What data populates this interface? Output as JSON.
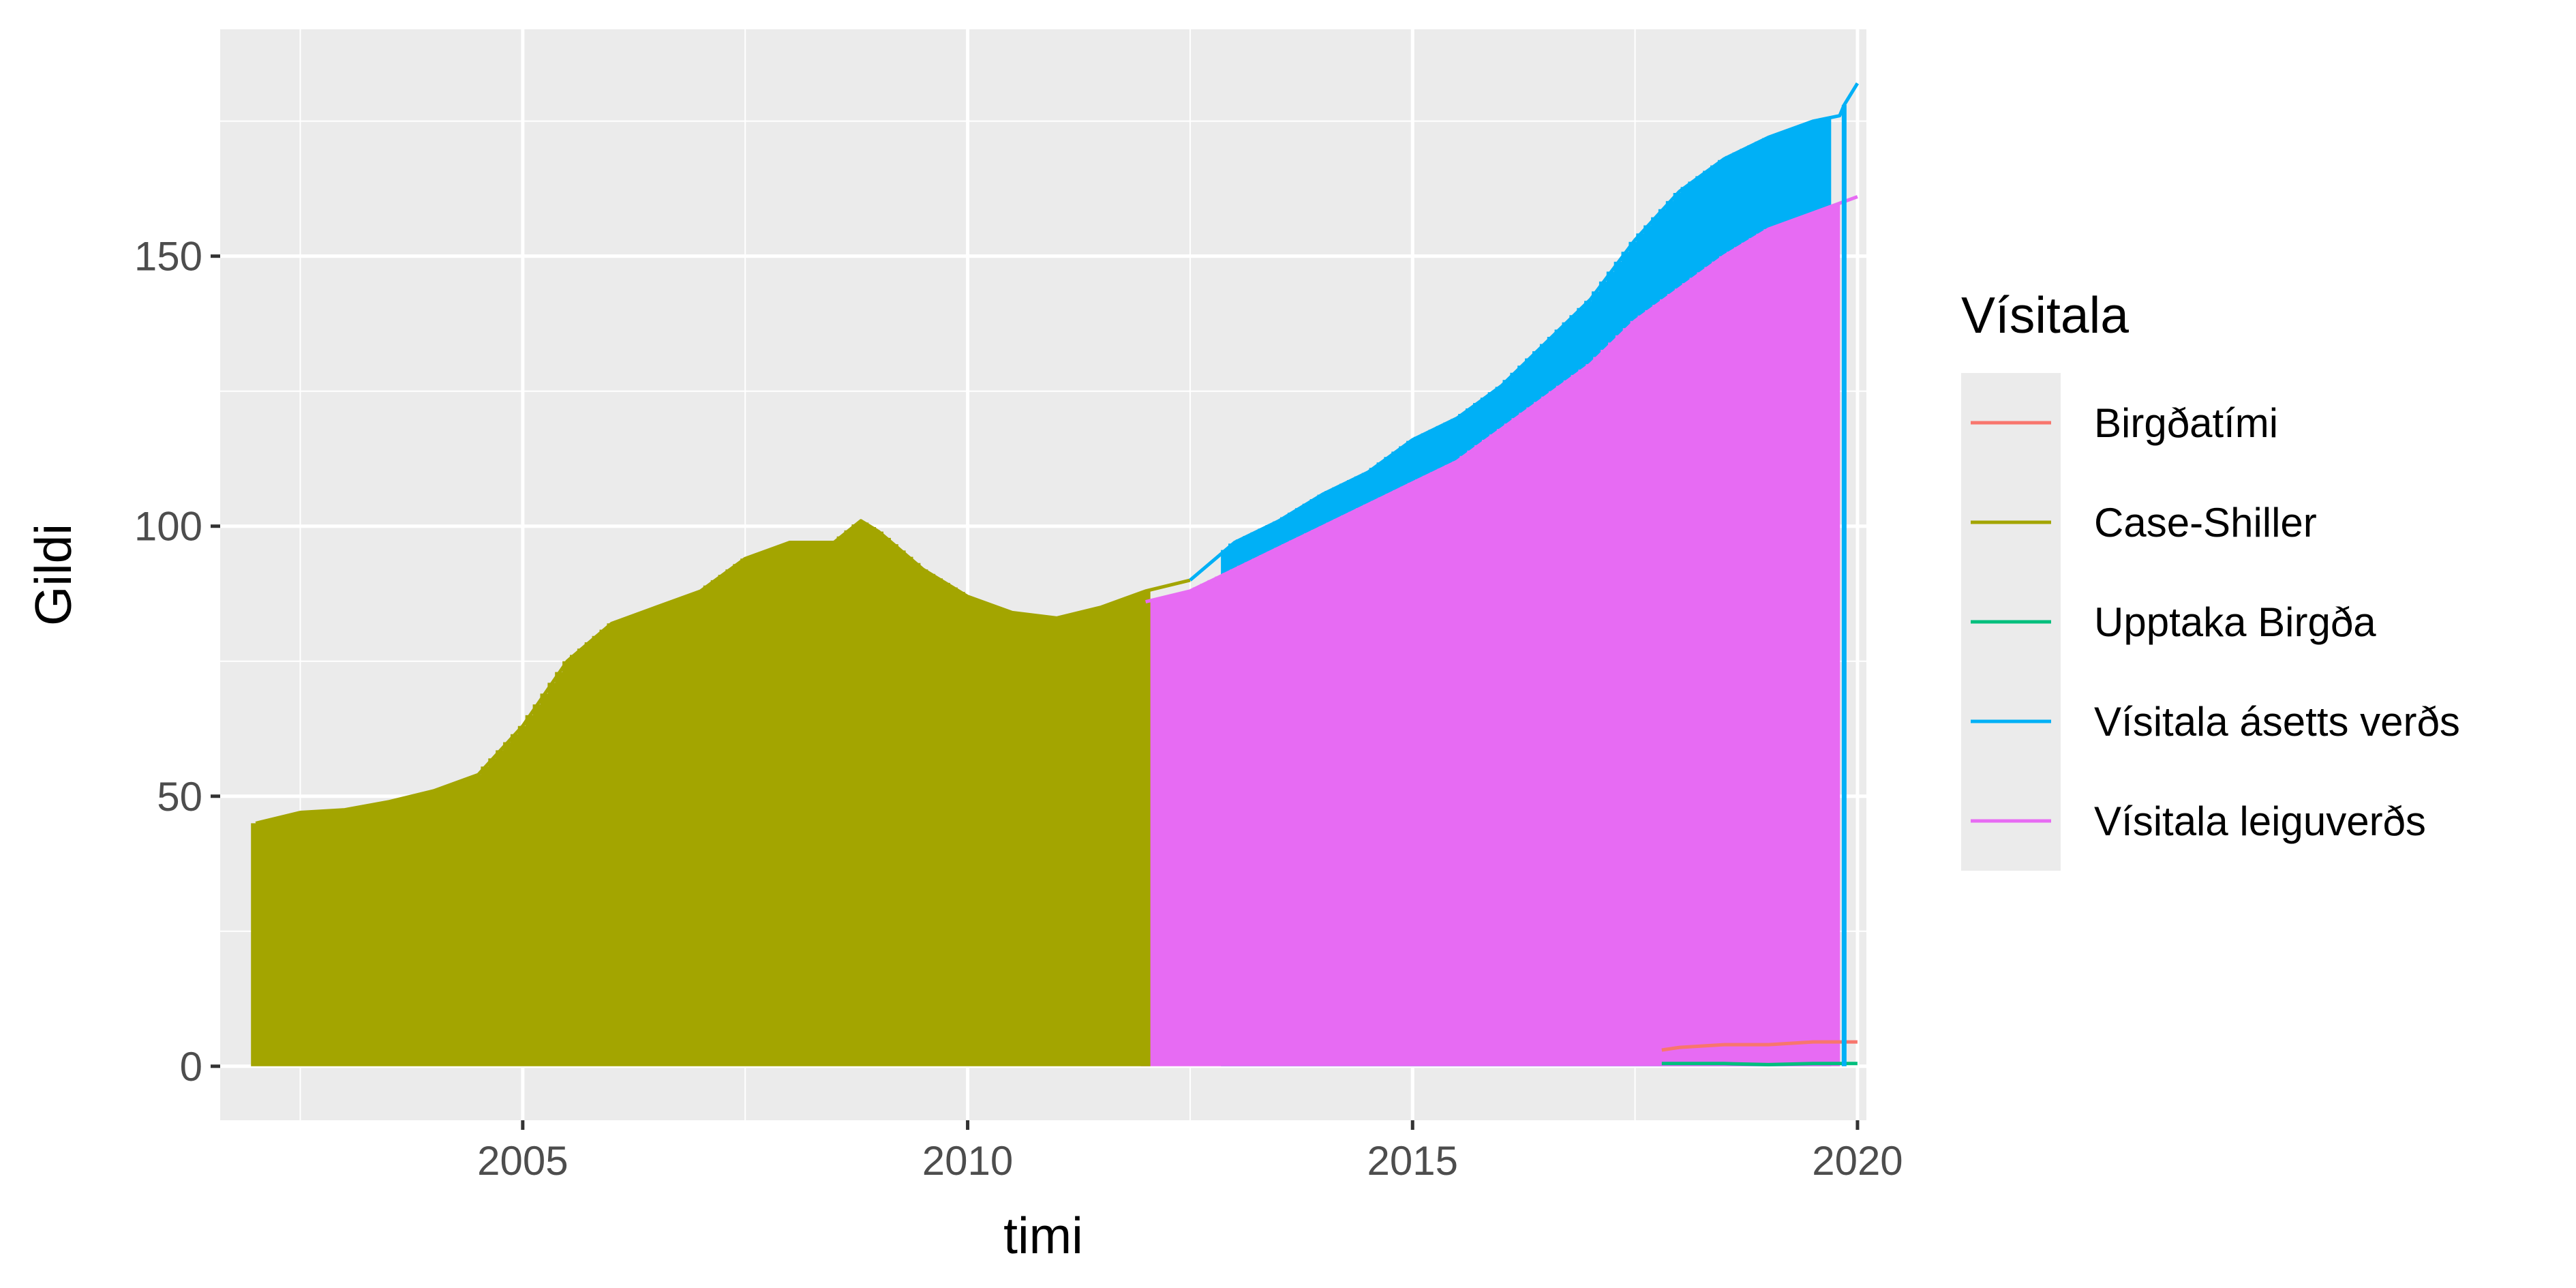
{
  "chart_data": {
    "type": "line",
    "title": "",
    "xlabel": "timi",
    "ylabel": "Gildi",
    "xlim": [
      2001.6,
      2020.1
    ],
    "ylim": [
      -10,
      192
    ],
    "x_ticks": [
      2005,
      2010,
      2015,
      2020
    ],
    "x_tick_labels": [
      "2005",
      "2010",
      "2015",
      "2020"
    ],
    "y_ticks": [
      0,
      50,
      100,
      150
    ],
    "y_tick_labels": [
      "0",
      "50",
      "100",
      "150"
    ],
    "grid": true,
    "legend": {
      "title": "Vísitala",
      "position": "right"
    },
    "series": [
      {
        "name": "Birgðatími",
        "color": "#F8766D",
        "points": [
          [
            2017.8,
            3
          ],
          [
            2018.0,
            3.5
          ],
          [
            2018.5,
            4
          ],
          [
            2019.0,
            4
          ],
          [
            2019.5,
            4.5
          ],
          [
            2019.8,
            4.5
          ],
          [
            2020.0,
            4.5
          ]
        ]
      },
      {
        "name": "Case-Shiller",
        "color": "#A3A500",
        "points": [
          [
            2002.0,
            45
          ],
          [
            2002.5,
            47
          ],
          [
            2003.0,
            47.5
          ],
          [
            2003.5,
            49
          ],
          [
            2004.0,
            51
          ],
          [
            2004.5,
            54
          ],
          [
            2005.0,
            63
          ],
          [
            2005.5,
            75
          ],
          [
            2006.0,
            82
          ],
          [
            2006.5,
            85
          ],
          [
            2007.0,
            88
          ],
          [
            2007.5,
            94
          ],
          [
            2008.0,
            97
          ],
          [
            2008.5,
            97
          ],
          [
            2008.8,
            101
          ],
          [
            2009.0,
            99
          ],
          [
            2009.5,
            92
          ],
          [
            2010.0,
            87
          ],
          [
            2010.5,
            84
          ],
          [
            2011.0,
            83
          ],
          [
            2011.5,
            85
          ],
          [
            2012.0,
            88
          ],
          [
            2012.5,
            90
          ]
        ]
      },
      {
        "name": "Upptaka Birgða",
        "color": "#00BF7D",
        "points": [
          [
            2017.8,
            0.5
          ],
          [
            2018.5,
            0.5
          ],
          [
            2019.0,
            0.3
          ],
          [
            2019.5,
            0.5
          ],
          [
            2020.0,
            0.5
          ]
        ]
      },
      {
        "name": "Vísitala ásetts verðs",
        "color": "#00B0F6",
        "points": [
          [
            2012.5,
            90
          ],
          [
            2013.0,
            97
          ],
          [
            2013.5,
            101
          ],
          [
            2014.0,
            106
          ],
          [
            2014.5,
            110
          ],
          [
            2015.0,
            116
          ],
          [
            2015.5,
            120
          ],
          [
            2016.0,
            126
          ],
          [
            2016.5,
            134
          ],
          [
            2017.0,
            142
          ],
          [
            2017.5,
            153
          ],
          [
            2018.0,
            162
          ],
          [
            2018.5,
            168
          ],
          [
            2019.0,
            172
          ],
          [
            2019.5,
            175
          ],
          [
            2019.8,
            176
          ],
          [
            2019.85,
            178
          ],
          [
            2020.0,
            182
          ]
        ]
      },
      {
        "name": "Vísitala leiguverðs",
        "color": "#E76BF3",
        "points": [
          [
            2012.0,
            86
          ],
          [
            2012.5,
            88
          ],
          [
            2013.0,
            92
          ],
          [
            2013.5,
            96
          ],
          [
            2014.0,
            100
          ],
          [
            2014.5,
            104
          ],
          [
            2015.0,
            108
          ],
          [
            2015.5,
            112
          ],
          [
            2016.0,
            118
          ],
          [
            2016.5,
            124
          ],
          [
            2017.0,
            130
          ],
          [
            2017.5,
            138
          ],
          [
            2018.0,
            144
          ],
          [
            2018.5,
            150
          ],
          [
            2019.0,
            155
          ],
          [
            2019.5,
            158
          ],
          [
            2020.0,
            161
          ]
        ]
      }
    ]
  }
}
